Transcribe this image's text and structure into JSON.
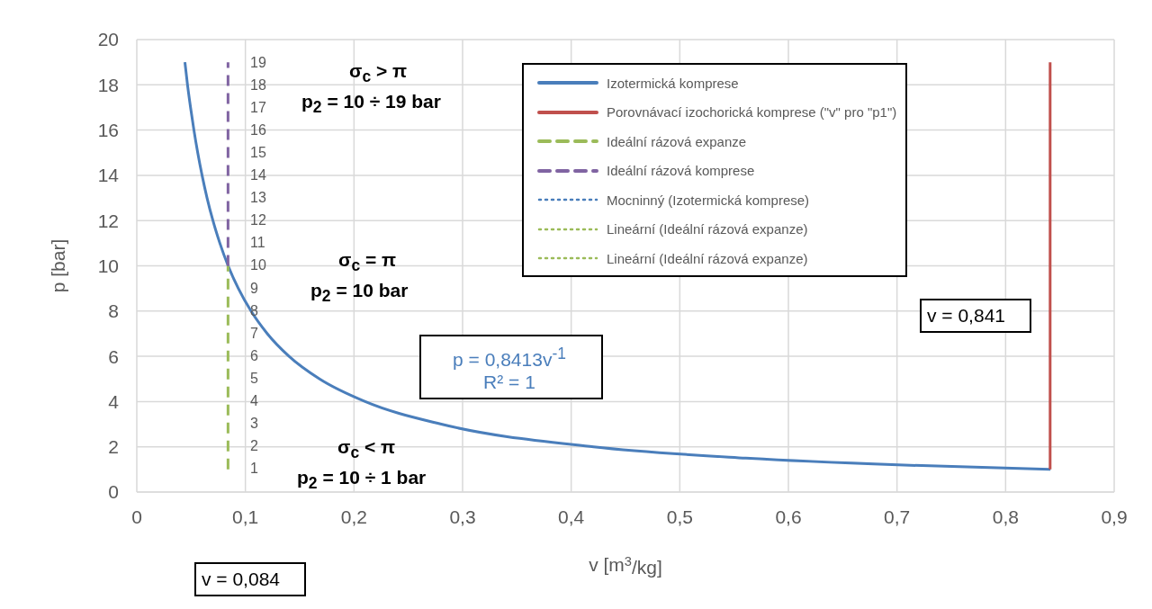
{
  "chart_data": {
    "type": "line",
    "xlabel": "v [m$^{3}$/kg]",
    "ylabel": "p [bar]",
    "xlim": [
      0,
      0.9
    ],
    "xticks": [
      {
        "value": 0,
        "label": "0"
      },
      {
        "value": 0.1,
        "label": "0,1"
      },
      {
        "value": 0.2,
        "label": "0,2"
      },
      {
        "value": 0.3,
        "label": "0,3"
      },
      {
        "value": 0.4,
        "label": "0,4"
      },
      {
        "value": 0.5,
        "label": "0,5"
      },
      {
        "value": 0.6,
        "label": "0,6"
      },
      {
        "value": 0.7,
        "label": "0,7"
      },
      {
        "value": 0.8,
        "label": "0,8"
      },
      {
        "value": 0.9,
        "label": "0,9"
      }
    ],
    "ylim": [
      0,
      20
    ],
    "yticks": [
      0,
      2,
      4,
      6,
      8,
      10,
      12,
      14,
      16,
      18,
      20
    ],
    "grid": true,
    "legend": "top right",
    "marker": "none",
    "series": [
      {
        "name": "Izotermická komprese",
        "color": "#4a7ebb",
        "line_style": "solid",
        "x": [
          0.0443,
          0.0467,
          0.0495,
          0.0526,
          0.0561,
          0.0601,
          0.0647,
          0.0701,
          0.0765,
          0.0841,
          0.0935,
          0.1052,
          0.1202,
          0.1402,
          0.1683,
          0.2103,
          0.2804,
          0.4207,
          0.5609,
          0.7011,
          0.8413
        ],
        "values": [
          19,
          18,
          17,
          16,
          15,
          14,
          13,
          12,
          11,
          10,
          9,
          8,
          7,
          6,
          5,
          4,
          3,
          2,
          1.5,
          1.2,
          1
        ]
      },
      {
        "name": "Porovnávací izochorická komprese (\"v\" pro \"p1\")",
        "color": "#c0504d",
        "line_style": "solid",
        "x": [
          0.841,
          0.841
        ],
        "values": [
          1,
          19
        ]
      },
      {
        "name": "Ideální rázová expanze",
        "color": "#9bbb59",
        "line_style": "dashed",
        "x": [
          0.084,
          0.084
        ],
        "values": [
          1,
          10
        ]
      },
      {
        "name": "Ideální rázová komprese",
        "color": "#8064a2",
        "line_style": "dashed",
        "x": [
          0.084,
          0.084
        ],
        "values": [
          10,
          19
        ]
      },
      {
        "name": "Mocninný (Izotermická komprese)",
        "color": "#4a7ebb",
        "line_style": "dotted"
      },
      {
        "name": "Lineární (Ideální rázová expanze)",
        "color": "#9bbb59",
        "line_style": "dotted"
      },
      {
        "name": "Lineární (Ideální rázová expanze)",
        "color": "#9bbb59",
        "line_style": "dotted"
      }
    ],
    "annotations": [
      "1",
      "2",
      "3",
      "4",
      "5",
      "6",
      "7",
      "8",
      "9",
      "10",
      "11",
      "12",
      "13",
      "14",
      "15",
      "16",
      "17",
      "18",
      "19",
      "σ$_{c}$ > π",
      "p$_{2}$ = 10 ÷ 19 bar",
      "σ$_{c}$ = π",
      "p$_{2}$ = 10 bar",
      "σ$_{c}$ < π",
      "p$_{2}$ = 10 ÷ 1 bar",
      "p = 0,8413v$^{-1}$",
      "R² = 1",
      "v = 0,841",
      "v = 0,084"
    ]
  }
}
